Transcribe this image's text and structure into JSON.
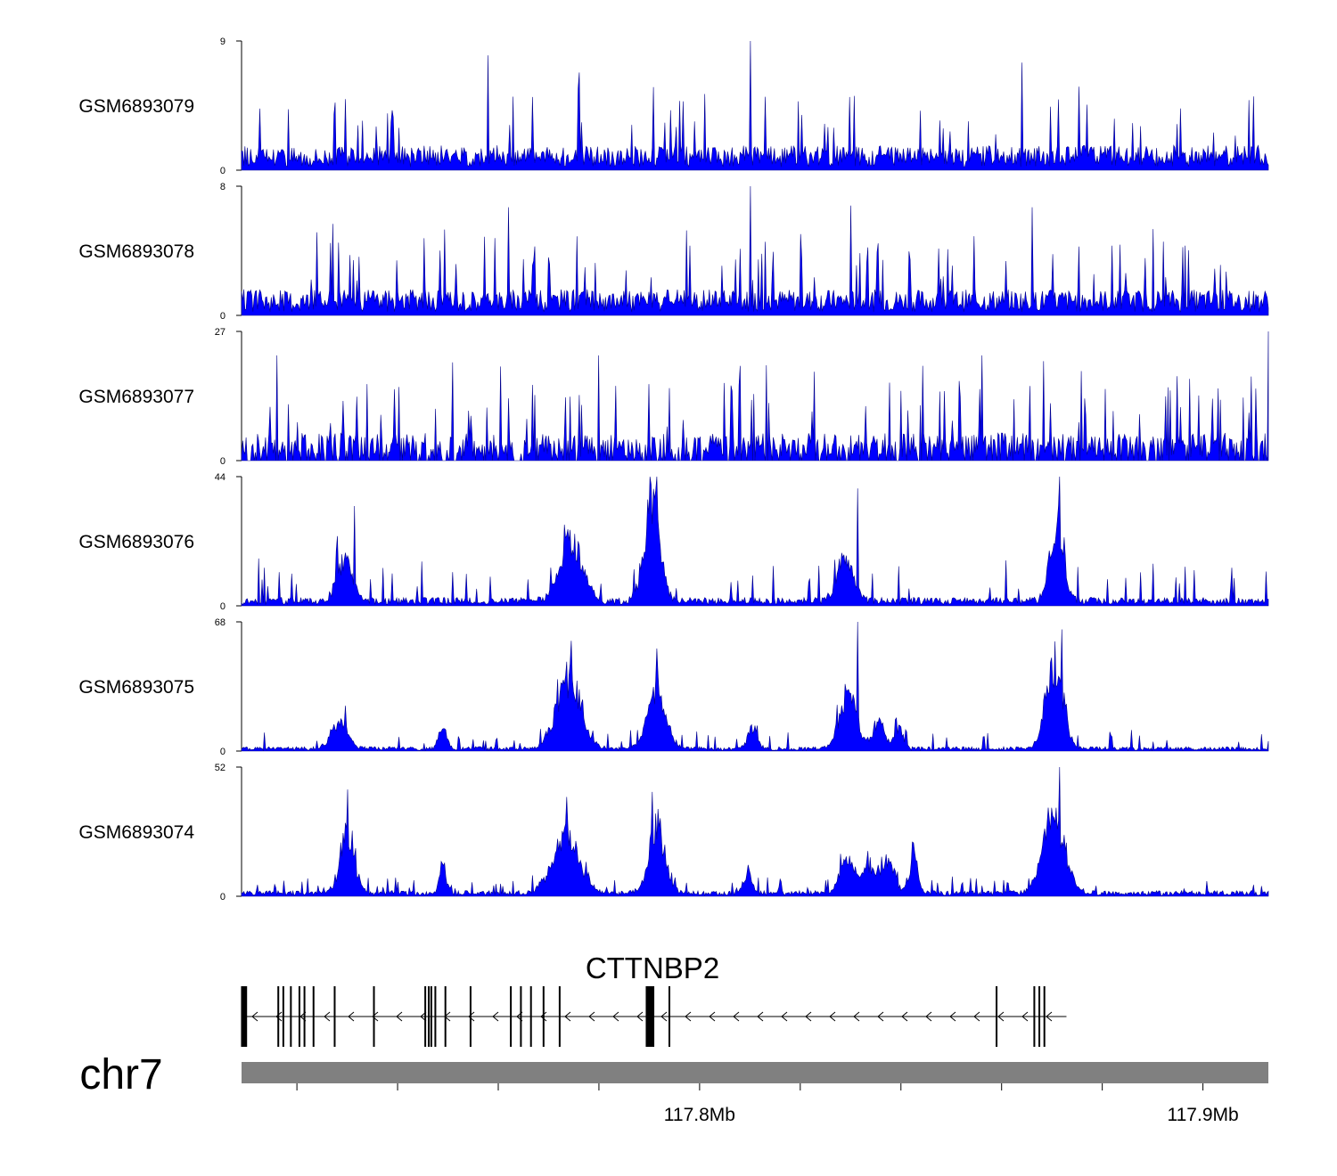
{
  "colors": {
    "signal": "#0000ff",
    "signal_stroke": "#00008b",
    "axis": "#000000",
    "ideogram": "#808080"
  },
  "chart_data": {
    "type": "area",
    "title": "",
    "chromosome": "chr7",
    "xlabel": "",
    "x_range_mb": [
      117.709,
      117.913
    ],
    "x_ticks_mb": [
      117.72,
      117.74,
      117.76,
      117.78,
      117.8,
      117.82,
      117.84,
      117.86,
      117.88,
      117.9
    ],
    "x_tick_labels": [
      {
        "pos": 117.8,
        "label": "117.8Mb"
      },
      {
        "pos": 117.9,
        "label": "117.9Mb"
      }
    ],
    "tracks": [
      {
        "name": "GSM6893079",
        "ymax": 9,
        "ymin_label": "0",
        "ymax_label": "9",
        "style": "noise",
        "base": 1.5,
        "spike": 3,
        "peaks": [],
        "seed": 79,
        "spikes": [
          {
            "x": 117.758,
            "h": 8.0
          },
          {
            "x": 117.81,
            "h": 9.0
          },
          {
            "x": 117.864,
            "h": 7.5
          },
          {
            "x": 117.776,
            "h": 6.8
          }
        ]
      },
      {
        "name": "GSM6893078",
        "ymax": 8,
        "ymin_label": "0",
        "ymax_label": "8",
        "style": "noise",
        "base": 1.4,
        "spike": 3,
        "peaks": [],
        "seed": 78,
        "spikes": [
          {
            "x": 117.81,
            "h": 8.0
          },
          {
            "x": 117.83,
            "h": 6.8
          },
          {
            "x": 117.762,
            "h": 6.7
          },
          {
            "x": 117.866,
            "h": 6.7
          }
        ]
      },
      {
        "name": "GSM6893077",
        "ymax": 27,
        "ymin_label": "0",
        "ymax_label": "27",
        "style": "sparse",
        "base": 5,
        "spike": 11,
        "peaks": [],
        "seed": 77,
        "spikes": [
          {
            "x": 117.716,
            "h": 22
          },
          {
            "x": 117.78,
            "h": 22
          },
          {
            "x": 117.856,
            "h": 22
          },
          {
            "x": 117.913,
            "h": 27
          },
          {
            "x": 117.734,
            "h": 16
          },
          {
            "x": 117.79,
            "h": 16
          }
        ]
      },
      {
        "name": "GSM6893076",
        "ymax": 44,
        "ymin_label": "0",
        "ymax_label": "44",
        "style": "peaks",
        "base": 2.5,
        "spike": 9,
        "seed": 76,
        "peaks": [
          {
            "x": 117.7295,
            "h": 18,
            "w": 0.0015
          },
          {
            "x": 117.7745,
            "h": 26,
            "w": 0.0022
          },
          {
            "x": 117.7905,
            "h": 40,
            "w": 0.0016
          },
          {
            "x": 117.829,
            "h": 20,
            "w": 0.0016
          },
          {
            "x": 117.871,
            "h": 38,
            "w": 0.0013
          }
        ],
        "spikes": [
          {
            "x": 117.7915,
            "h": 44
          },
          {
            "x": 117.8315,
            "h": 40
          },
          {
            "x": 117.8715,
            "h": 44
          },
          {
            "x": 117.7315,
            "h": 34
          }
        ]
      },
      {
        "name": "GSM6893075",
        "ymax": 68,
        "ymin_label": "0",
        "ymax_label": "68",
        "style": "peaks",
        "base": 2,
        "spike": 6,
        "seed": 75,
        "peaks": [
          {
            "x": 117.7285,
            "h": 18,
            "w": 0.0016
          },
          {
            "x": 117.749,
            "h": 14,
            "w": 0.0008
          },
          {
            "x": 117.774,
            "h": 48,
            "w": 0.0024
          },
          {
            "x": 117.7915,
            "h": 40,
            "w": 0.0018
          },
          {
            "x": 117.8105,
            "h": 14,
            "w": 0.0009
          },
          {
            "x": 117.8295,
            "h": 36,
            "w": 0.0017
          },
          {
            "x": 117.8355,
            "h": 18,
            "w": 0.0011
          },
          {
            "x": 117.8395,
            "h": 14,
            "w": 0.0009
          },
          {
            "x": 117.8705,
            "h": 58,
            "w": 0.0017
          }
        ],
        "spikes": [
          {
            "x": 117.8315,
            "h": 68
          },
          {
            "x": 117.872,
            "h": 64
          },
          {
            "x": 117.7745,
            "h": 58
          },
          {
            "x": 117.7915,
            "h": 54
          }
        ]
      },
      {
        "name": "GSM6893074",
        "ymax": 52,
        "ymin_label": "0",
        "ymax_label": "52",
        "style": "peaks",
        "base": 2,
        "spike": 4,
        "seed": 74,
        "peaks": [
          {
            "x": 117.73,
            "h": 32,
            "w": 0.0014
          },
          {
            "x": 117.749,
            "h": 14,
            "w": 0.0007
          },
          {
            "x": 117.7735,
            "h": 30,
            "w": 0.0026
          },
          {
            "x": 117.7915,
            "h": 34,
            "w": 0.0016
          },
          {
            "x": 117.8095,
            "h": 10,
            "w": 0.0008
          },
          {
            "x": 117.8295,
            "h": 16,
            "w": 0.0016
          },
          {
            "x": 117.834,
            "h": 14,
            "w": 0.0012
          },
          {
            "x": 117.8375,
            "h": 18,
            "w": 0.0012
          },
          {
            "x": 117.8425,
            "h": 20,
            "w": 0.0008
          },
          {
            "x": 117.8705,
            "h": 40,
            "w": 0.0021
          }
        ],
        "spikes": [
          {
            "x": 117.8715,
            "h": 52
          },
          {
            "x": 117.73,
            "h": 43
          },
          {
            "x": 117.7905,
            "h": 42
          },
          {
            "x": 117.7735,
            "h": 40
          }
        ]
      }
    ],
    "gene": {
      "name": "CTTNBP2",
      "strand": "-",
      "start_mb": 117.709,
      "end_mb": 117.872,
      "exons_mb": [
        117.7093,
        117.7163,
        117.7173,
        117.7188,
        117.7205,
        117.7215,
        117.7233,
        117.7275,
        117.7353,
        117.7455,
        117.7462,
        117.7467,
        117.7475,
        117.7495,
        117.7545,
        117.7625,
        117.7645,
        117.7665,
        117.769,
        117.7722,
        117.794,
        117.859,
        117.8665,
        117.8675,
        117.8685
      ],
      "thick_exons_mb": [
        [
          117.7089,
          117.7101
        ],
        [
          117.7893,
          117.791
        ]
      ]
    }
  }
}
